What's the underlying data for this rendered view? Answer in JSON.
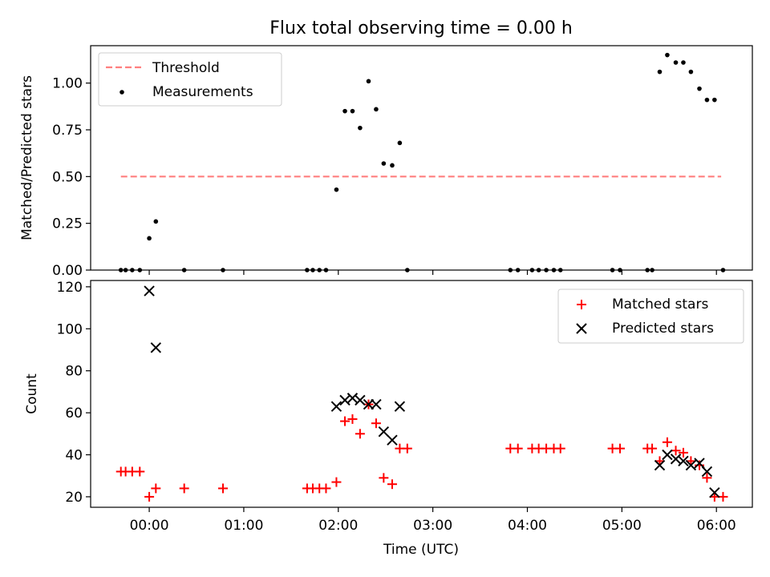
{
  "figure": {
    "title": "Flux total observing time = 0.00 h",
    "xlabel": "Time (UTC)"
  },
  "chart_data": [
    {
      "type": "scatter",
      "title": "Flux total observing time = 0.00 h",
      "xlabel": "",
      "ylabel": "Matched/Predicted stars",
      "x_unit": "hours UTC (negative = before 00:00)",
      "xlim": [
        -0.62,
        6.38
      ],
      "ylim": [
        0,
        1.2
      ],
      "yticks": [
        "0.00",
        "0.25",
        "0.50",
        "0.75",
        "1.00"
      ],
      "xtick_labels": [],
      "legend": {
        "position": "top-left",
        "entries": [
          "Threshold",
          "Measurements"
        ]
      },
      "threshold": {
        "name": "Threshold",
        "y": 0.5,
        "x_range": [
          -0.3,
          6.05
        ],
        "color": "#ff0000",
        "alpha": 0.5,
        "style": "dashed"
      },
      "series": [
        {
          "name": "Measurements",
          "color": "#000000",
          "x": [
            -0.3,
            -0.25,
            -0.18,
            -0.1,
            0.0,
            0.07,
            0.37,
            0.78,
            1.67,
            1.73,
            1.8,
            1.87,
            1.98,
            2.07,
            2.15,
            2.23,
            2.32,
            2.4,
            2.48,
            2.57,
            2.65,
            2.73,
            3.82,
            3.9,
            4.05,
            4.12,
            4.2,
            4.28,
            4.35,
            4.9,
            4.98,
            5.27,
            5.32,
            5.4,
            5.48,
            5.57,
            5.65,
            5.73,
            5.82,
            5.9,
            5.98,
            6.07
          ],
          "y": [
            0,
            0,
            0,
            0,
            0.17,
            0.26,
            0,
            0,
            0,
            0,
            0,
            0,
            0.43,
            0.85,
            0.85,
            0.76,
            1.01,
            0.86,
            0.57,
            0.56,
            0.68,
            0,
            0,
            0,
            0,
            0,
            0,
            0,
            0,
            0,
            0,
            0,
            0,
            1.06,
            1.15,
            1.11,
            1.11,
            1.06,
            0.97,
            0.91,
            0.91,
            0
          ]
        }
      ]
    },
    {
      "type": "scatter",
      "title": "",
      "xlabel": "Time (UTC)",
      "ylabel": "Count",
      "x_unit": "hours UTC (negative = before 00:00)",
      "xlim": [
        -0.62,
        6.38
      ],
      "ylim": [
        15,
        123
      ],
      "yticks": [
        "20",
        "40",
        "60",
        "80",
        "100",
        "120"
      ],
      "xtick_labels": [
        "00:00",
        "01:00",
        "02:00",
        "03:00",
        "04:00",
        "05:00",
        "06:00"
      ],
      "legend": {
        "position": "top-right",
        "entries": [
          "Matched stars",
          "Predicted stars"
        ]
      },
      "series": [
        {
          "name": "Matched stars",
          "marker": "+",
          "color": "#ff0000",
          "x": [
            -0.3,
            -0.25,
            -0.18,
            -0.1,
            0.0,
            0.07,
            0.37,
            0.78,
            1.67,
            1.73,
            1.8,
            1.87,
            1.98,
            2.07,
            2.15,
            2.23,
            2.32,
            2.4,
            2.48,
            2.57,
            2.65,
            2.73,
            3.82,
            3.9,
            4.05,
            4.12,
            4.2,
            4.28,
            4.35,
            4.9,
            4.98,
            5.27,
            5.32,
            5.4,
            5.48,
            5.57,
            5.65,
            5.73,
            5.82,
            5.9,
            5.98,
            6.07
          ],
          "y": [
            32,
            32,
            32,
            32,
            20,
            24,
            24,
            24,
            24,
            24,
            24,
            24,
            27,
            56,
            57,
            50,
            64,
            55,
            29,
            26,
            43,
            43,
            43,
            43,
            43,
            43,
            43,
            43,
            43,
            43,
            43,
            43,
            43,
            37,
            46,
            42,
            41,
            37,
            35,
            29,
            20,
            20
          ]
        },
        {
          "name": "Predicted stars",
          "marker": "x",
          "color": "#000000",
          "x": [
            0.0,
            0.07,
            1.98,
            2.07,
            2.15,
            2.23,
            2.32,
            2.4,
            2.48,
            2.57,
            2.65,
            5.4,
            5.48,
            5.57,
            5.65,
            5.73,
            5.82,
            5.9,
            5.98
          ],
          "y": [
            118,
            91,
            63,
            66,
            67,
            66,
            64,
            64,
            51,
            47,
            63,
            35,
            40,
            38,
            37,
            35,
            36,
            32,
            22
          ]
        }
      ]
    }
  ]
}
